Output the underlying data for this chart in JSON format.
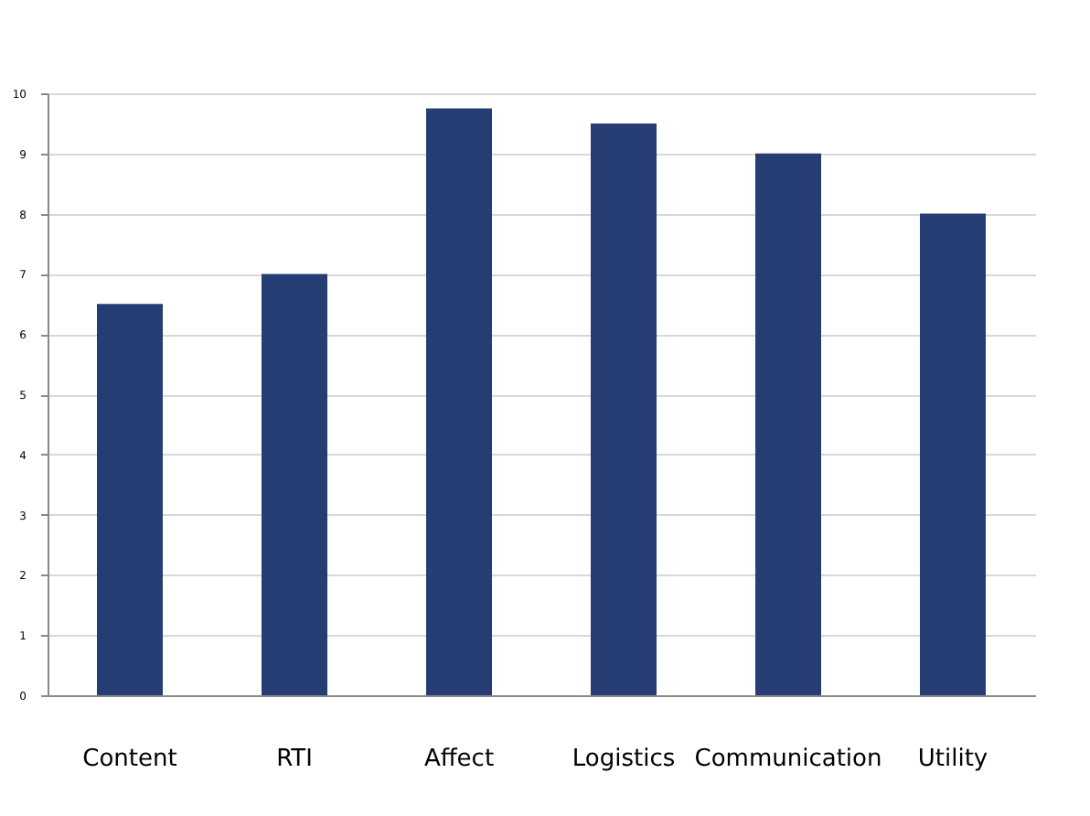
{
  "chart_data": {
    "type": "bar",
    "categories": [
      "Content",
      "RTI",
      "Affect",
      "Logistics",
      "Communication",
      "Utility"
    ],
    "values": [
      6.5,
      7,
      9.75,
      9.5,
      9,
      8
    ],
    "color": "#253d73",
    "ylim": [
      0,
      10
    ],
    "yticks": [
      0,
      1,
      2,
      3,
      4,
      5,
      6,
      7,
      8,
      9,
      10
    ],
    "grid": "y"
  }
}
